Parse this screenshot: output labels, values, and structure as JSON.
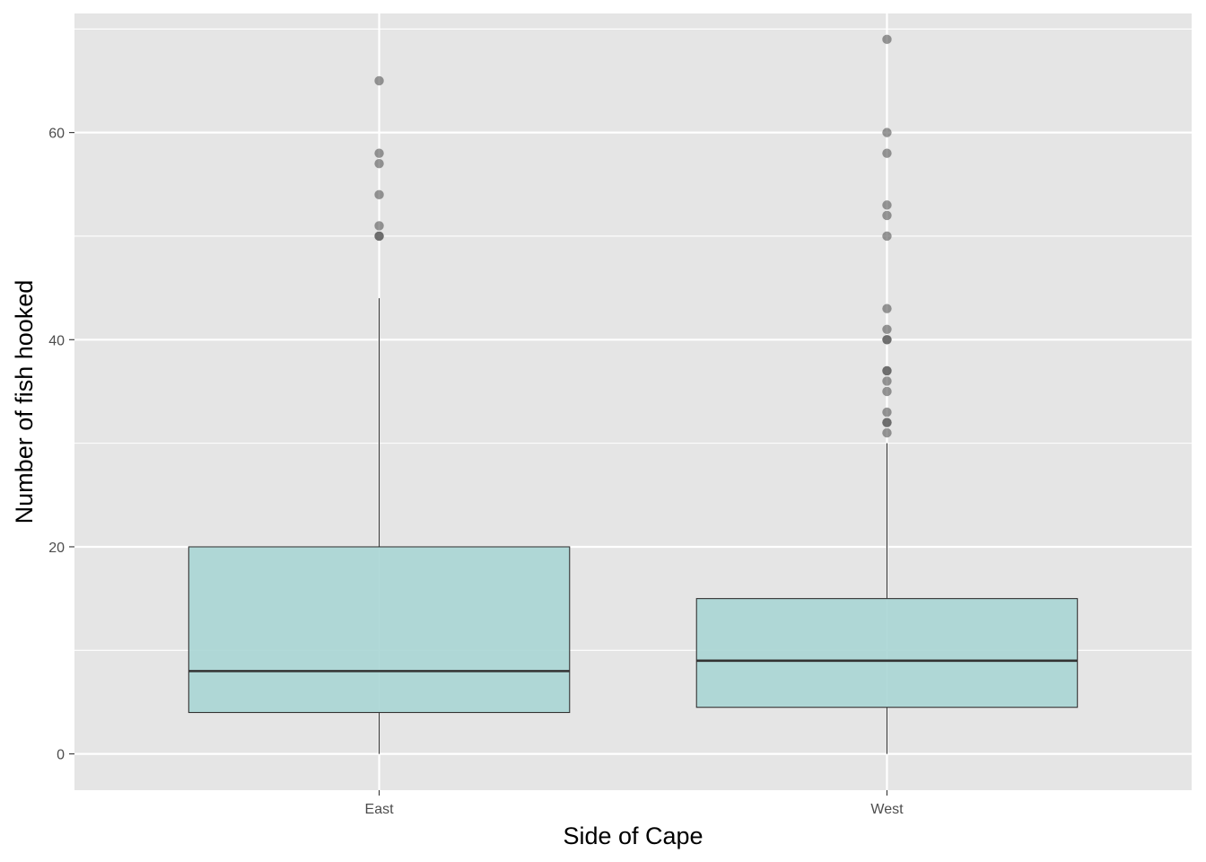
{
  "chart_data": {
    "type": "boxplot",
    "title": "",
    "xlabel": "Side of Cape",
    "ylabel": "Number of fish hooked",
    "categories": [
      "East",
      "West"
    ],
    "ylim": [
      -3.5,
      71.5
    ],
    "y_ticks": [
      0,
      20,
      40,
      60
    ],
    "y_minor_ticks": [
      10,
      30,
      50,
      70
    ],
    "grid": true,
    "legend": "none",
    "colors": {
      "panel_background": "#e5e5e5",
      "grid": "#ffffff",
      "box_fill": "#a8d5d4",
      "box_outline": "#333333",
      "outlier": "#555555"
    },
    "boxes": [
      {
        "category": "East",
        "whisker_low": 0,
        "q1": 4,
        "median": 8,
        "q3": 20,
        "whisker_high": 44,
        "outliers": [
          50,
          50,
          51,
          54,
          57,
          58,
          65
        ]
      },
      {
        "category": "West",
        "whisker_low": 0,
        "q1": 4.5,
        "median": 9,
        "q3": 15,
        "whisker_high": 30,
        "outliers": [
          31,
          32,
          32,
          33,
          35,
          36,
          37,
          37,
          40,
          40,
          41,
          43,
          50,
          52,
          53,
          58,
          60,
          69
        ]
      }
    ]
  }
}
